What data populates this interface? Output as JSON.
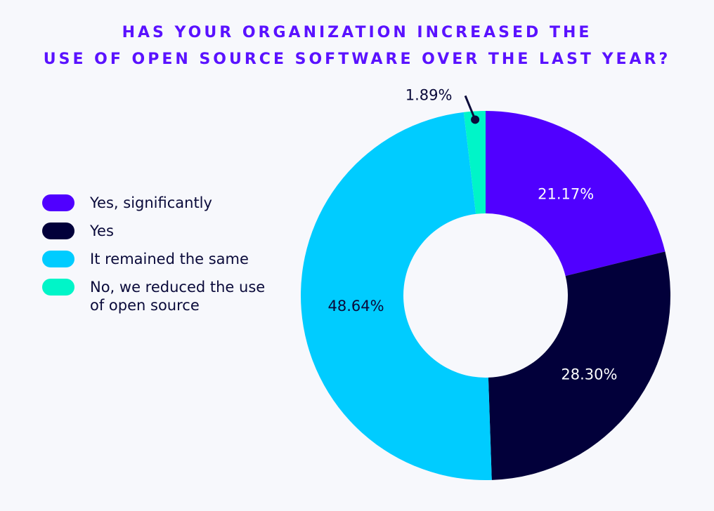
{
  "chart_data": {
    "type": "pie",
    "variant": "donut",
    "title_lines": [
      "HAS YOUR ORGANIZATION INCREASED THE",
      "USE OF OPEN SOURCE SOFTWARE OVER THE LAST YEAR?"
    ],
    "categories": [
      "Yes, significantly",
      "Yes",
      "It remained the same",
      "No, we reduced the use of open source"
    ],
    "values": [
      21.17,
      28.3,
      48.64,
      1.89
    ],
    "labels": [
      "21.17%",
      "28.30%",
      "48.64%",
      "1.89%"
    ],
    "colors": [
      "#5000ff",
      "#02003a",
      "#00ccff",
      "#00f5c8"
    ],
    "label_colors": [
      "#ffffff",
      "#ffffff",
      "#0a0a3a",
      "#0a0a3a"
    ],
    "legend_placement": "left"
  }
}
